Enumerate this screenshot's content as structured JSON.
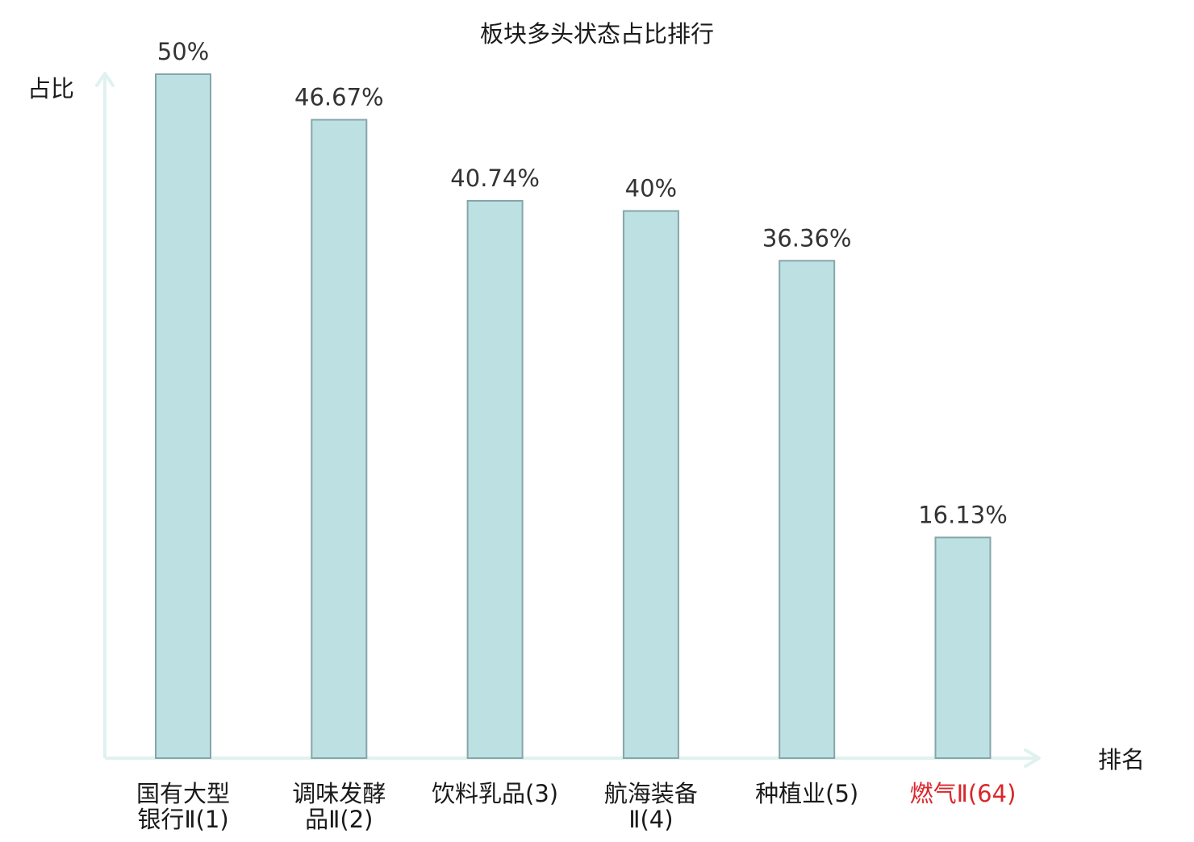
{
  "chart_data": {
    "type": "bar",
    "title": "板块多头状态占比排行",
    "ylabel": "占比",
    "xlabel": "排名",
    "ylim": [
      0,
      50
    ],
    "grid": false,
    "categories": [
      {
        "lines": [
          "国有大型",
          "银行Ⅱ(1)"
        ],
        "highlight": false
      },
      {
        "lines": [
          "调味发酵",
          "品Ⅱ(2)"
        ],
        "highlight": false
      },
      {
        "lines": [
          "饮料乳品(3)"
        ],
        "highlight": false
      },
      {
        "lines": [
          "航海装备",
          "Ⅱ(4)"
        ],
        "highlight": false
      },
      {
        "lines": [
          "种植业(5)"
        ],
        "highlight": false
      },
      {
        "lines": [
          "燃气Ⅱ(64)"
        ],
        "highlight": true
      }
    ],
    "values": [
      50,
      46.67,
      40.74,
      40,
      36.36,
      16.13
    ],
    "value_labels": [
      "50%",
      "46.67%",
      "40.74%",
      "40%",
      "36.36%",
      "16.13%"
    ]
  },
  "colors": {
    "bar_fill": "#bde0e3",
    "bar_stroke": "#86a6a8",
    "axis": "#e0f2ef",
    "text": "#333333",
    "label_text": "#1a1a1a",
    "highlight": "#d9262b"
  }
}
